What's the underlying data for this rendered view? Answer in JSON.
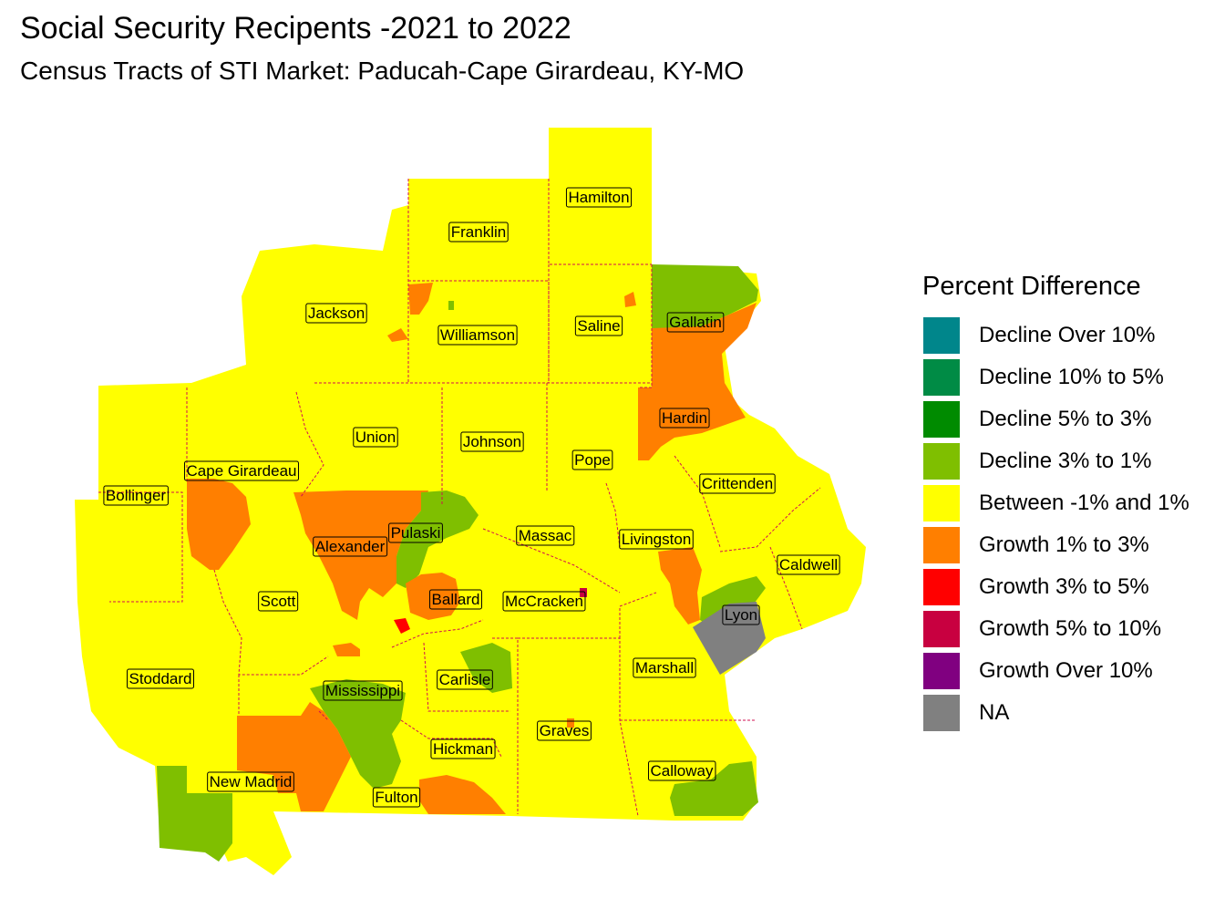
{
  "title": "Social Security Recipents -2021 to 2022",
  "subtitle": "Census Tracts of STI Market: Paducah-Cape Girardeau, KY-MO",
  "legend": {
    "title": "Percent Difference",
    "items": [
      {
        "label": "Decline Over 10%",
        "color": "#00868B"
      },
      {
        "label": "Decline 10% to 5%",
        "color": "#008B45"
      },
      {
        "label": "Decline 5% to 3%",
        "color": "#008B00"
      },
      {
        "label": "Decline 3% to 1%",
        "color": "#7FBF00"
      },
      {
        "label": "Between -1% and 1%",
        "color": "#FFFF00"
      },
      {
        "label": "Growth 1% to 3%",
        "color": "#FF7F00"
      },
      {
        "label": "Growth 3% to 5%",
        "color": "#FF0000"
      },
      {
        "label": "Growth 5% to 10%",
        "color": "#C80040"
      },
      {
        "label": "Growth Over 10%",
        "color": "#800080"
      },
      {
        "label": "NA",
        "color": "#808080"
      }
    ]
  },
  "counties": [
    "Hamilton",
    "Franklin",
    "Jackson",
    "Williamson",
    "Saline",
    "Gallatin",
    "Union",
    "Johnson",
    "Hardin",
    "Pope",
    "Cape Girardeau",
    "Bollinger",
    "Crittenden",
    "Pulaski",
    "Alexander",
    "Massac",
    "Livingston",
    "Caldwell",
    "Scott",
    "Ballard",
    "McCracken",
    "Lyon",
    "Stoddard",
    "Carlisle",
    "Marshall",
    "Mississippi",
    "Graves",
    "Hickman",
    "Calloway",
    "New Madrid",
    "Fulton"
  ]
}
